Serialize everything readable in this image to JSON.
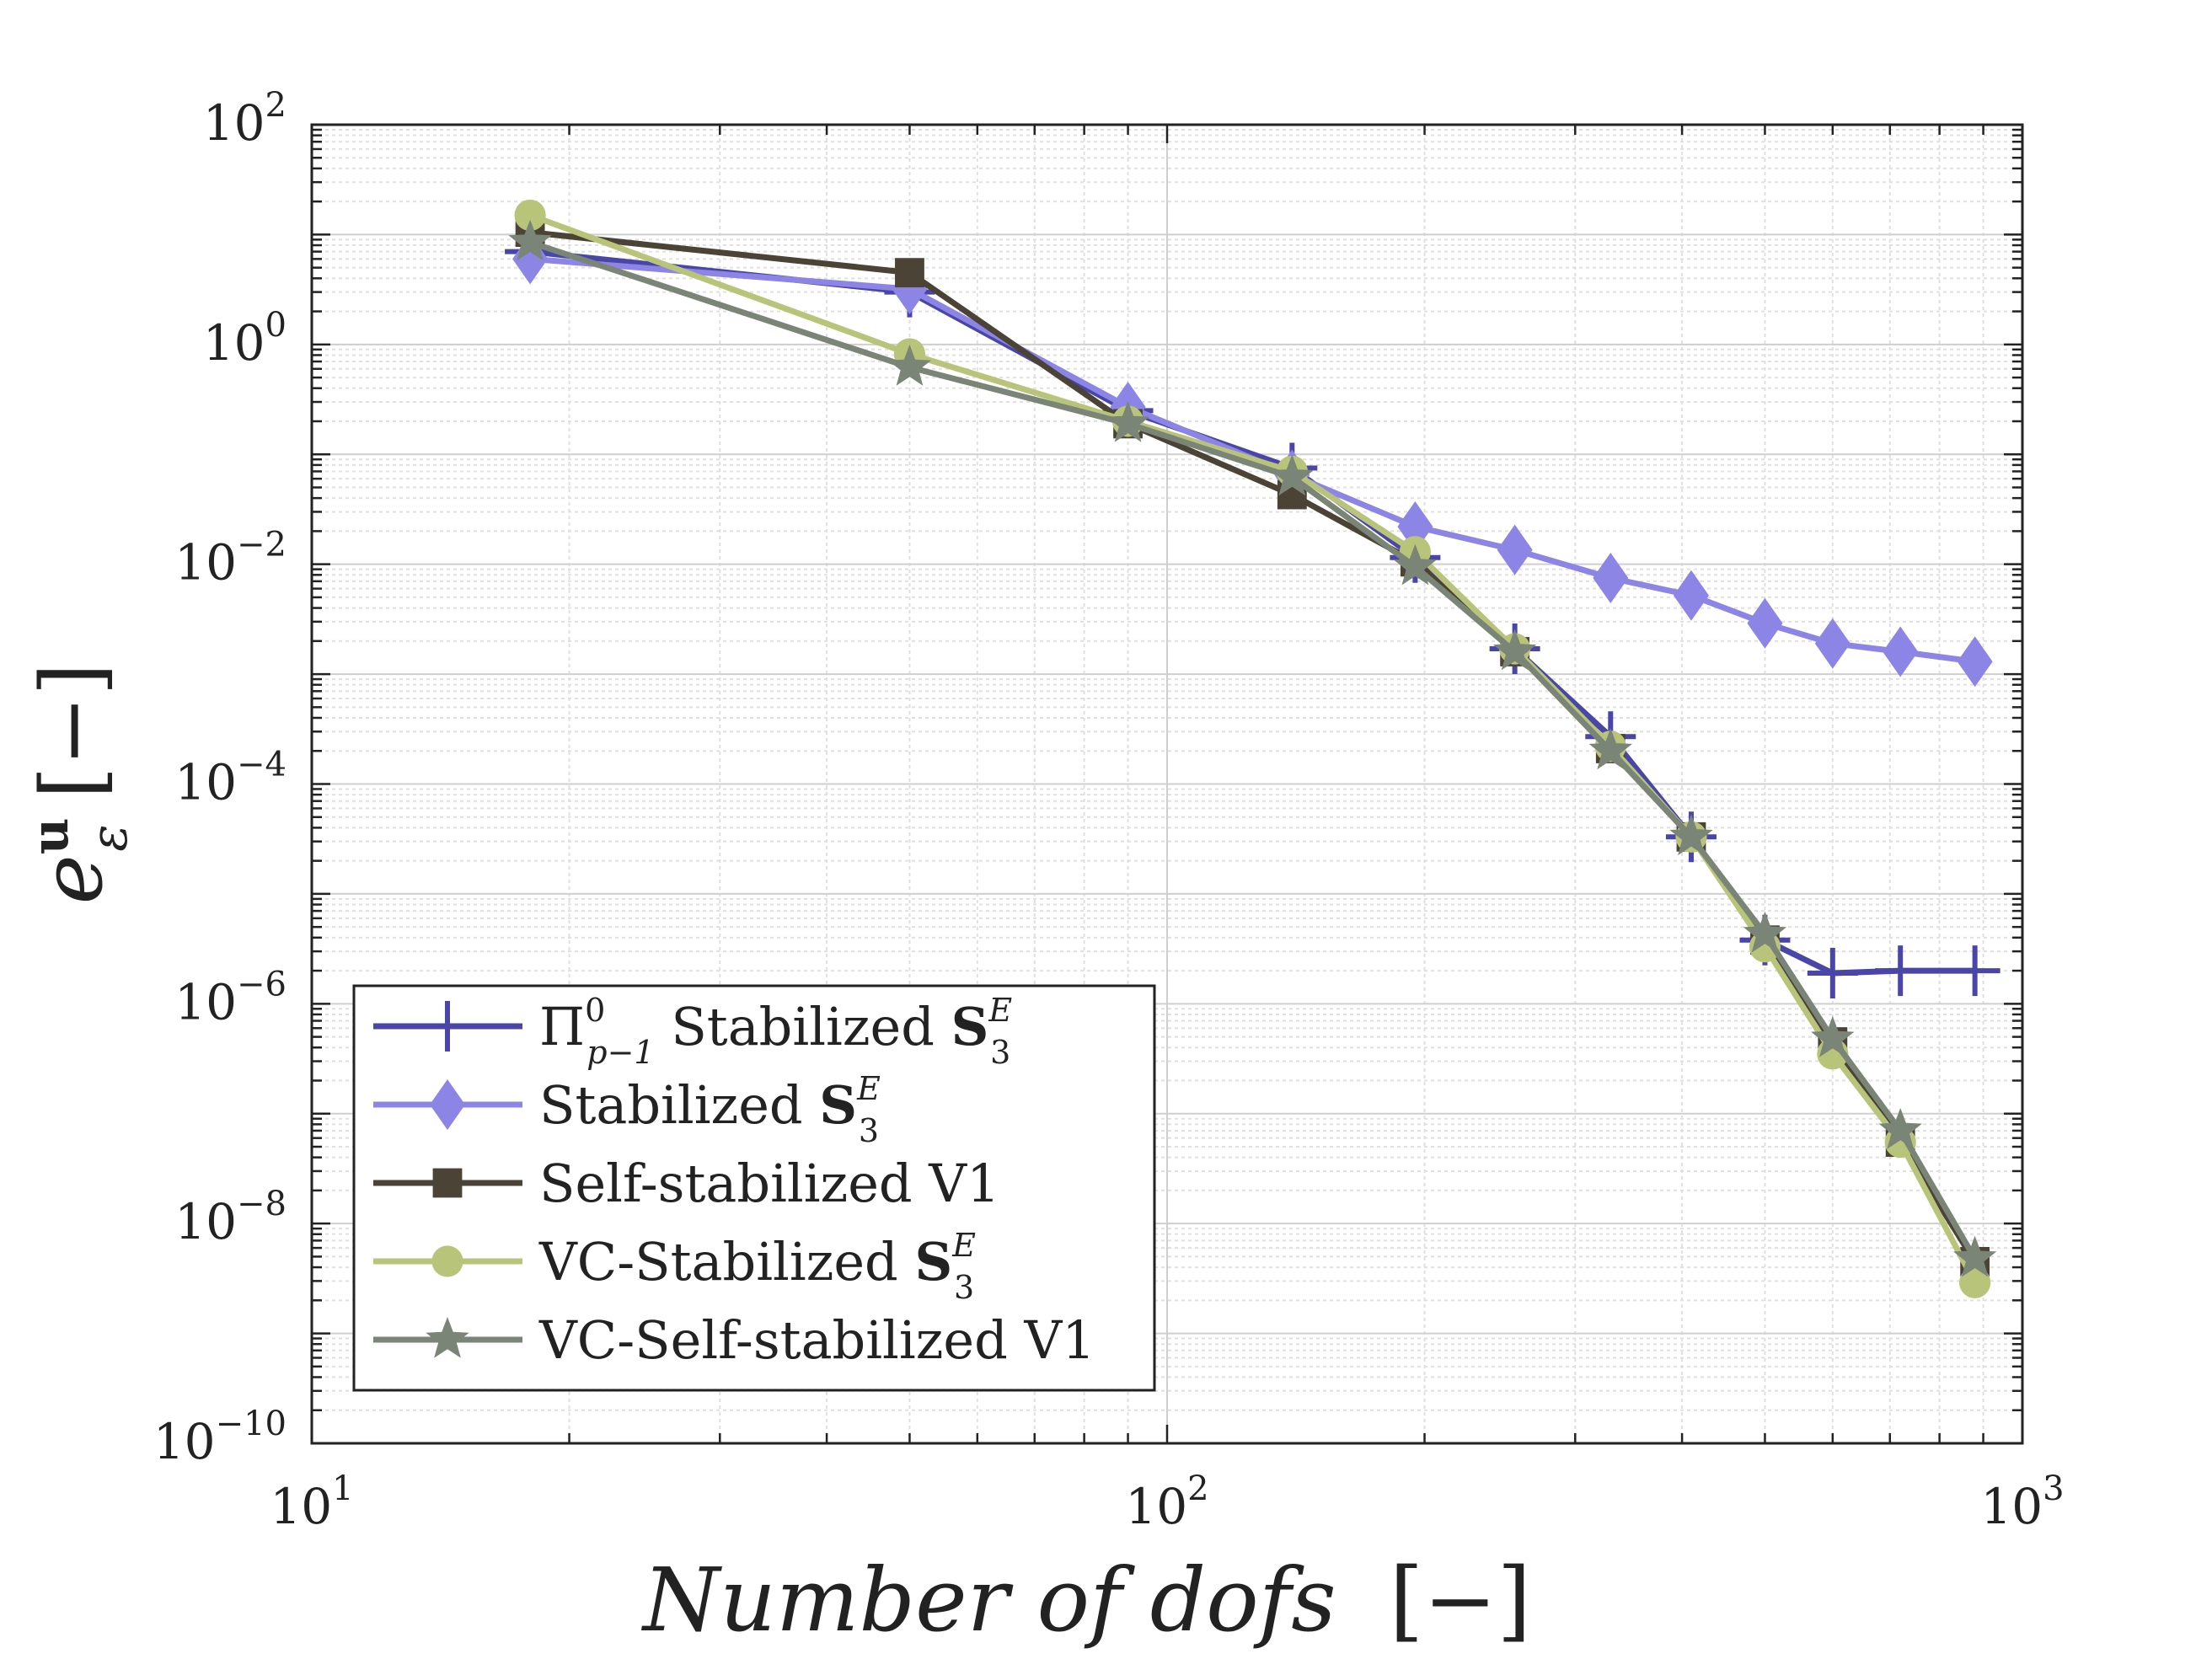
{
  "chart_data": {
    "type": "line",
    "x_scale": "log",
    "y_scale": "log",
    "xlim": [
      10,
      1000
    ],
    "ylim": [
      1e-10,
      100
    ],
    "grid": true,
    "legend_position": "bottom-left",
    "xlabel": {
      "main": "Number of dofs",
      "unit": "[−]"
    },
    "ylabel": {
      "symbol": "e",
      "superscript": "u",
      "subscript": "ε",
      "unit": "[−]"
    },
    "x_ticks": [
      {
        "value": 10,
        "base": "10",
        "exp": "1"
      },
      {
        "value": 100,
        "base": "10",
        "exp": "2"
      },
      {
        "value": 1000,
        "base": "10",
        "exp": "3"
      }
    ],
    "y_ticks": [
      {
        "value": 100,
        "base": "10",
        "exp": "2"
      },
      {
        "value": 1,
        "base": "10",
        "exp": "0"
      },
      {
        "value": 0.01,
        "base": "10",
        "exp": "−2"
      },
      {
        "value": 0.0001,
        "base": "10",
        "exp": "−4"
      },
      {
        "value": 1e-06,
        "base": "10",
        "exp": "−6"
      },
      {
        "value": 1e-08,
        "base": "10",
        "exp": "−8"
      },
      {
        "value": 1e-10,
        "base": "10",
        "exp": "−10"
      }
    ],
    "series": [
      {
        "name": "Π⁰ₚ₋₁ Stabilized S₃ᴱ",
        "legend": {
          "pi": "Π",
          "pi_sup": "0",
          "pi_sub": "p−1",
          "text": " Stabilized ",
          "bold": "S",
          "sub": "3",
          "sup": "E"
        },
        "color": "#4a46a8",
        "marker": "plus",
        "x": [
          18,
          50,
          90,
          140,
          195,
          255,
          330,
          410,
          500,
          600,
          720,
          880
        ],
        "y": [
          7,
          3,
          0.25,
          0.075,
          0.0115,
          0.0017,
          0.00027,
          3.3e-05,
          3.8e-06,
          1.9e-06,
          2e-06,
          2e-06
        ]
      },
      {
        "name": "Stabilized S₃ᴱ",
        "legend": {
          "text": "Stabilized ",
          "bold": "S",
          "sub": "3",
          "sup": "E"
        },
        "color": "#8c85e6",
        "marker": "diamond",
        "x": [
          18,
          50,
          90,
          140,
          195,
          255,
          330,
          410,
          500,
          600,
          720,
          880
        ],
        "y": [
          6,
          3.2,
          0.27,
          0.065,
          0.022,
          0.0135,
          0.0075,
          0.0052,
          0.0029,
          0.0019,
          0.0016,
          0.0013
        ]
      },
      {
        "name": "Self-stabilized V1",
        "legend": {
          "text": "Self-stabilized V1"
        },
        "color": "#4a4336",
        "marker": "square",
        "x": [
          18,
          50,
          90,
          140,
          195,
          255,
          330,
          410,
          500,
          600,
          720,
          880
        ],
        "y": [
          10.5,
          4.5,
          0.19,
          0.043,
          0.0105,
          0.0016,
          0.00021,
          3.3e-05,
          3.8e-06,
          4.5e-07,
          5.5e-08,
          4.5e-09
        ]
      },
      {
        "name": "VC-Stabilized S₃ᴱ",
        "legend": {
          "text": "VC-Stabilized ",
          "bold": "S",
          "sub": "3",
          "sup": "E"
        },
        "color": "#b8c47a",
        "marker": "circle",
        "x": [
          18,
          50,
          90,
          140,
          195,
          255,
          330,
          410,
          500,
          600,
          720,
          880
        ],
        "y": [
          15,
          0.82,
          0.2,
          0.07,
          0.013,
          0.0017,
          0.00022,
          3.3e-05,
          3.3e-06,
          3.5e-07,
          5.5e-08,
          2.9e-09
        ]
      },
      {
        "name": "VC-Self-stabilized V1",
        "legend": {
          "text": "VC-Self-stabilized V1"
        },
        "color": "#7a8577",
        "marker": "star",
        "x": [
          18,
          50,
          90,
          140,
          195,
          255,
          330,
          410,
          500,
          600,
          720,
          880
        ],
        "y": [
          8.5,
          0.62,
          0.19,
          0.062,
          0.0095,
          0.0016,
          0.0002,
          3.3e-05,
          4.3e-06,
          4.8e-07,
          7e-08,
          4.8e-09
        ]
      }
    ]
  }
}
